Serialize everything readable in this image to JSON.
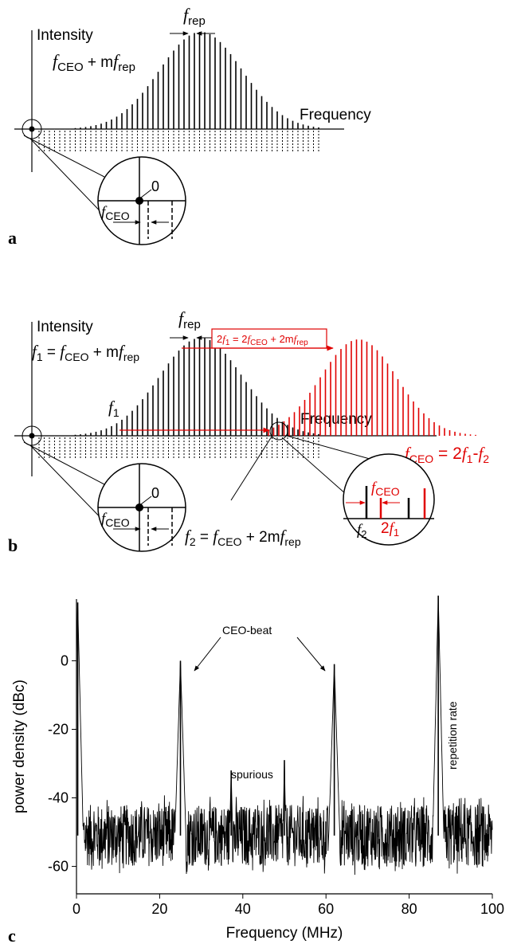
{
  "panel_a": {
    "label": "a",
    "y_label": "Intensity",
    "x_label": "Frequency",
    "f_rep_var": "f",
    "f_rep_sub": "rep",
    "eq_f": "f",
    "eq_ceo_sub": "CEO",
    "eq_plus": " + m",
    "eq_f2": "f",
    "eq_rep_sub": "rep",
    "zoom_zero": "0",
    "zoom_f": "f",
    "zoom_ceo_sub": "CEO"
  },
  "panel_b": {
    "label": "b",
    "y_label": "Intensity",
    "x_label": "Frequency",
    "f_rep_var": "f",
    "f_rep_sub": "rep",
    "f1_eq": {
      "f": "f",
      "sub1": "1",
      "eq": " = ",
      "f2": "f",
      "ceo": "CEO",
      "plus": " + m",
      "f3": "f",
      "rep": "rep"
    },
    "f1_label": {
      "f": "f",
      "sub": "1"
    },
    "doubled_box": {
      "pre": "2",
      "f": "f",
      "sub1": "1",
      "eq": " = 2",
      "f2": "f",
      "ceo": "CEO",
      "plus": " + 2m",
      "f3": "f",
      "rep": "rep"
    },
    "ceo_eq": {
      "f": "f",
      "ceo": "CEO",
      "eq": " = 2",
      "f1": "f",
      "s1": "1",
      "minus": "-",
      "f2": "f",
      "s2": "2"
    },
    "f2_eq": {
      "f": "f",
      "sub": "2",
      "eq": " = ",
      "f2": "f",
      "ceo": "CEO",
      "plus": " + 2m",
      "f3": "f",
      "rep": "rep"
    },
    "zoom_zero": "0",
    "zoom_f": "f",
    "zoom_ceo_sub": "CEO",
    "zoom2": {
      "fceo": "f",
      "ceo": "CEO",
      "f2": "f",
      "s2": "2",
      "two": "2",
      "f1": "f",
      "s1": "1"
    }
  },
  "panel_c": {
    "label": "c",
    "annotations": {
      "ceo_beat": "CEO-beat",
      "spurious": "spurious",
      "rep_rate": "repetition rate"
    },
    "colors": {
      "red": "#e00000",
      "black": "#000000"
    }
  },
  "chart_data": {
    "type": "line",
    "title": "",
    "xlabel": "Frequency (MHz)",
    "ylabel": "power density (dBc)",
    "xlim": [
      0,
      100
    ],
    "ylim": [
      -68,
      18
    ],
    "x_ticks": [
      0,
      20,
      40,
      60,
      80,
      100
    ],
    "y_ticks": [
      0,
      -20,
      -40,
      -60
    ],
    "series": [
      {
        "peaks": [
          {
            "x": 0.3,
            "y": 17,
            "label": ""
          },
          {
            "x": 25,
            "y": 0,
            "label": "CEO-beat"
          },
          {
            "x": 37.2,
            "y": -32,
            "label": "spurious"
          },
          {
            "x": 50,
            "y": -29,
            "label": "spurious"
          },
          {
            "x": 62,
            "y": -1,
            "label": "CEO-beat"
          },
          {
            "x": 87,
            "y": 19,
            "label": "repetition rate"
          }
        ],
        "noise_floor_mean": -51,
        "noise_floor_range": [
          -64,
          -40
        ]
      }
    ]
  }
}
